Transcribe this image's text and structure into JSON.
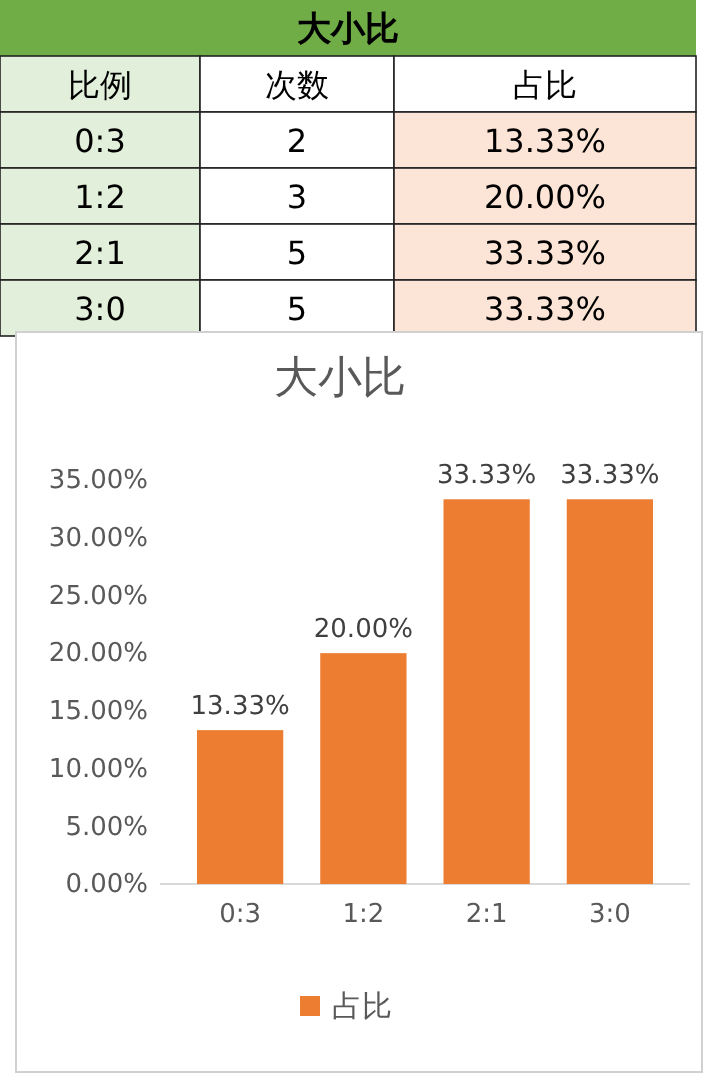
{
  "chart_data": [
    {
      "type": "other",
      "title": "大小比",
      "xlabel": "比例",
      "data_labels": true,
      "categories": [
        "0:3",
        "1:2",
        "2:1",
        "3:0"
      ],
      "series": [
        {
          "name": "次数",
          "values": [
            2,
            3,
            5,
            5
          ]
        },
        {
          "name": "占比",
          "color": "#fce4d6",
          "values": [
            13.33,
            20.0,
            33.33,
            33.33
          ],
          "value_labels": [
            "13.33%",
            "20.00%",
            "33.33%",
            "33.33%"
          ]
        }
      ]
    },
    {
      "type": "bar",
      "title": "大小比",
      "categories": [
        "0:3",
        "1:2",
        "2:1",
        "3:0"
      ],
      "series": [
        {
          "name": "占比",
          "color": "#ed7d31",
          "values": [
            13.33,
            20.0,
            33.33,
            33.33
          ],
          "value_labels": [
            "13.33%",
            "20.00%",
            "33.33%",
            "33.33%"
          ]
        }
      ],
      "ylim": [
        0,
        35
      ],
      "yticks": [
        {
          "value": 0,
          "label": "0.00%"
        },
        {
          "value": 5,
          "label": "5.00%"
        },
        {
          "value": 10,
          "label": "10.00%"
        },
        {
          "value": 15,
          "label": "15.00%"
        },
        {
          "value": 20,
          "label": "20.00%"
        },
        {
          "value": 25,
          "label": "25.00%"
        },
        {
          "value": 30,
          "label": "30.00%"
        },
        {
          "value": 35,
          "label": "35.00%"
        }
      ],
      "grid": false,
      "legend": "bottom"
    }
  ]
}
